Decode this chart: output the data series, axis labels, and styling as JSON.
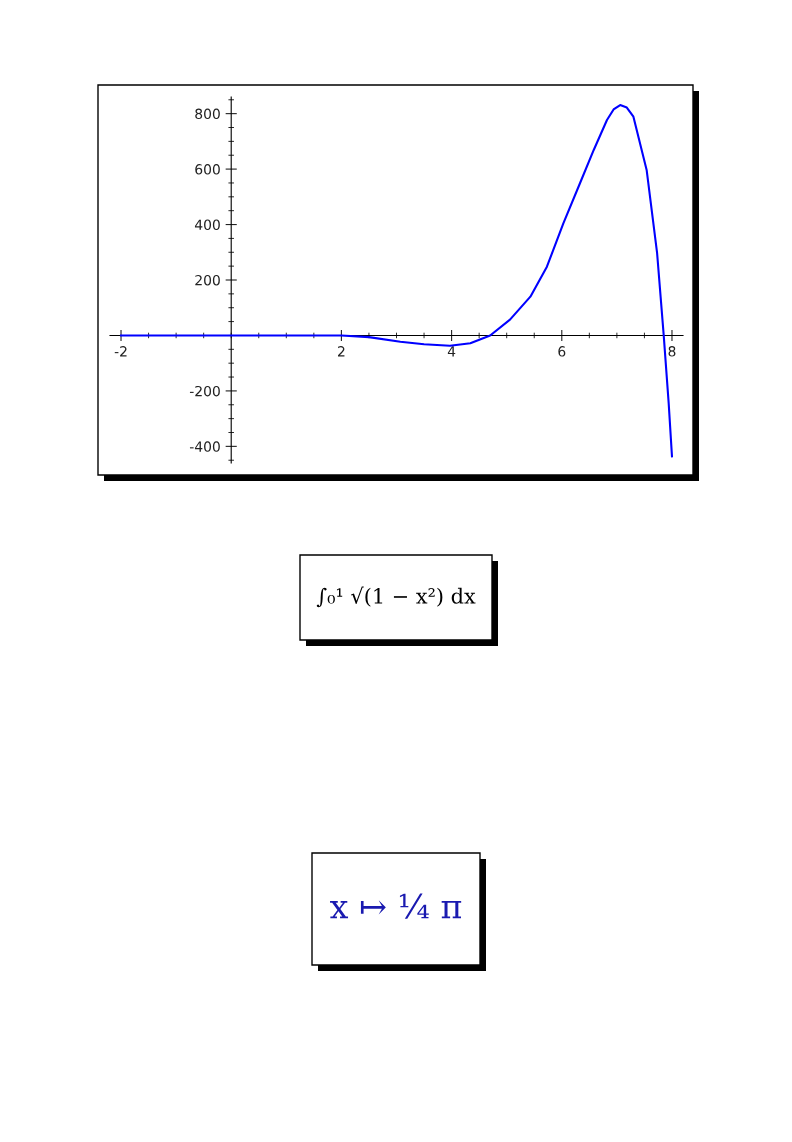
{
  "chart_data": {
    "type": "line",
    "x": [
      -2,
      -1,
      0,
      1,
      2,
      2.5,
      3.07,
      3.5,
      3.97,
      4.34,
      4.7,
      5.06,
      5.43,
      5.73,
      6.03,
      6.33,
      6.58,
      6.82,
      6.94,
      7.06,
      7.18,
      7.3,
      7.54,
      7.73,
      7.85,
      7.94,
      8.0
    ],
    "series": [
      {
        "color": "#0000ff",
        "values": [
          0,
          0,
          0,
          0,
          0,
          -6,
          -23,
          -32,
          -37,
          -28,
          0,
          57,
          140,
          248,
          405,
          549,
          669,
          777,
          815,
          831,
          822,
          789,
          597,
          297,
          0,
          -244,
          -436
        ]
      }
    ],
    "xlim": [
      -2.2,
      8.2
    ],
    "ylim": [
      -460,
      860
    ],
    "xticks": [
      -2,
      2,
      4,
      6,
      8
    ],
    "yticks": [
      -400,
      -200,
      200,
      400,
      600,
      800
    ],
    "grid": false,
    "marker": "none",
    "line_style": "solid",
    "annotations": [
      "∫₀¹ √(1 − x²) dx",
      "x ↦ ¼ π"
    ]
  }
}
